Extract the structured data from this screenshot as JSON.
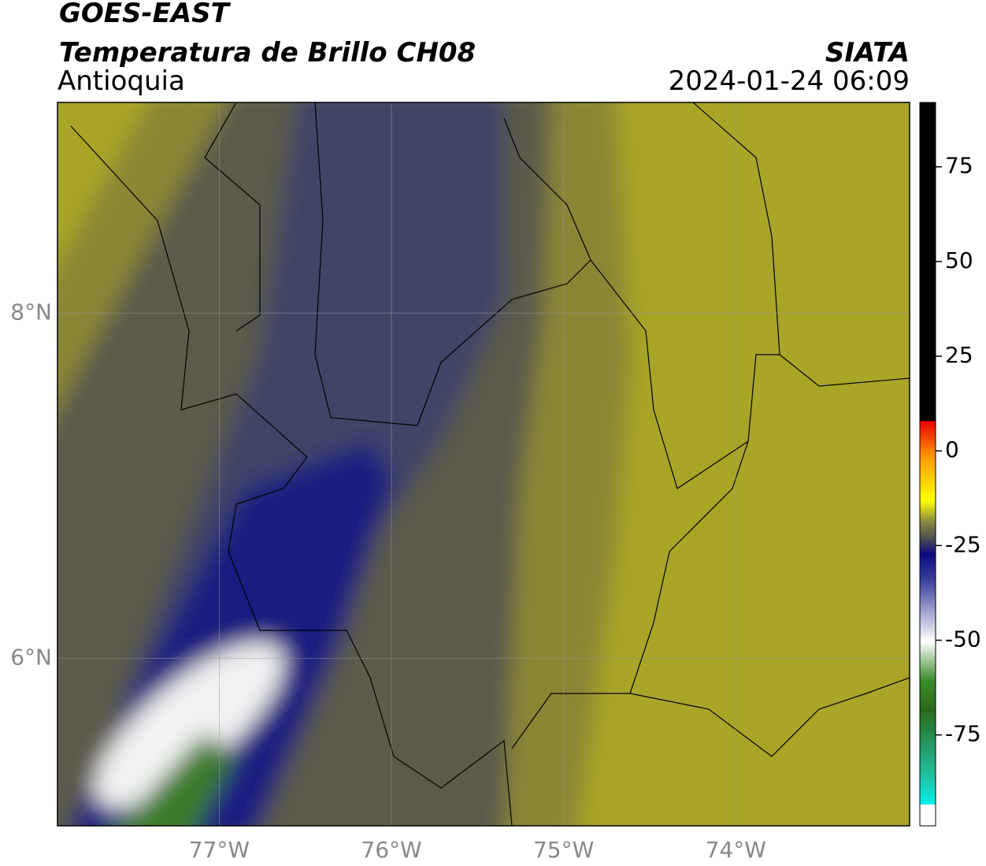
{
  "header": {
    "title": "GOES-EAST",
    "subtitle": "Temperatura de Brillo CH08",
    "region": "Antioquia",
    "source": "SIATA",
    "datetime": "2024-01-24 06:09"
  },
  "map": {
    "xlim": [
      -77.94,
      -72.99
    ],
    "ylim": [
      5.03,
      9.22
    ],
    "xticks": [
      {
        "value": -77,
        "label": "77°W"
      },
      {
        "value": -76,
        "label": "76°W"
      },
      {
        "value": -75,
        "label": "75°W"
      },
      {
        "value": -74,
        "label": "74°W"
      }
    ],
    "yticks": [
      {
        "value": 6,
        "label": "6°N"
      },
      {
        "value": 8,
        "label": "8°N"
      }
    ],
    "grid": true
  },
  "colorbar": {
    "lim": [
      -99,
      92
    ],
    "ticks": [
      75,
      50,
      25,
      0,
      -25,
      -50,
      -75
    ]
  }
}
